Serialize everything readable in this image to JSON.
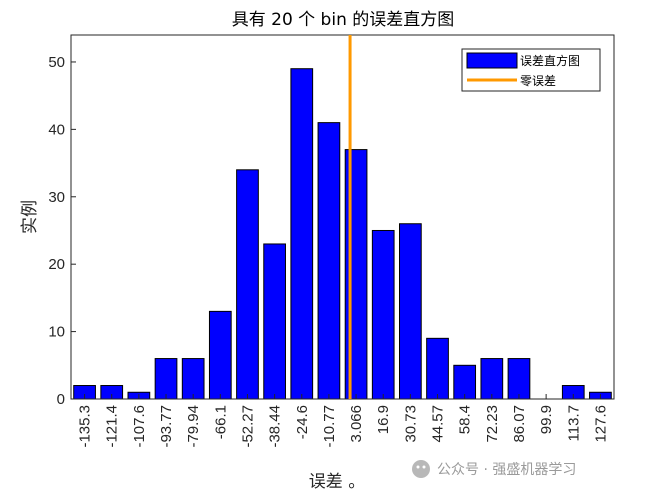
{
  "chart_data": {
    "type": "bar",
    "title": "具有 20 个 bin 的误差直方图",
    "xlabel": "误差 。",
    "ylabel": "实例",
    "categories": [
      "-135.3",
      "-121.4",
      "-107.6",
      "-93.77",
      "-79.94",
      "-66.1",
      "-52.27",
      "-38.44",
      "-24.6",
      "-10.77",
      "3.066",
      "16.9",
      "30.73",
      "44.57",
      "58.4",
      "72.23",
      "86.07",
      "99.9",
      "113.7",
      "127.6"
    ],
    "series": [
      {
        "name": "误差直方图",
        "values": [
          2,
          2,
          1,
          6,
          6,
          13,
          34,
          23,
          49,
          41,
          37,
          25,
          26,
          9,
          5,
          6,
          6,
          0,
          2,
          1
        ]
      }
    ],
    "ylim": [
      0,
      54
    ],
    "yticks": [
      0,
      10,
      20,
      30,
      40,
      50
    ],
    "zero_error_line": {
      "label": "零误差",
      "x": 0
    },
    "legend_position": "top-right",
    "grid": false,
    "colors": {
      "bar_fill": "#0000ff",
      "bar_edge": "#000000",
      "zero_line": "#ff9900"
    }
  },
  "watermark": {
    "text": "公众号 · 强盛机器学习"
  }
}
